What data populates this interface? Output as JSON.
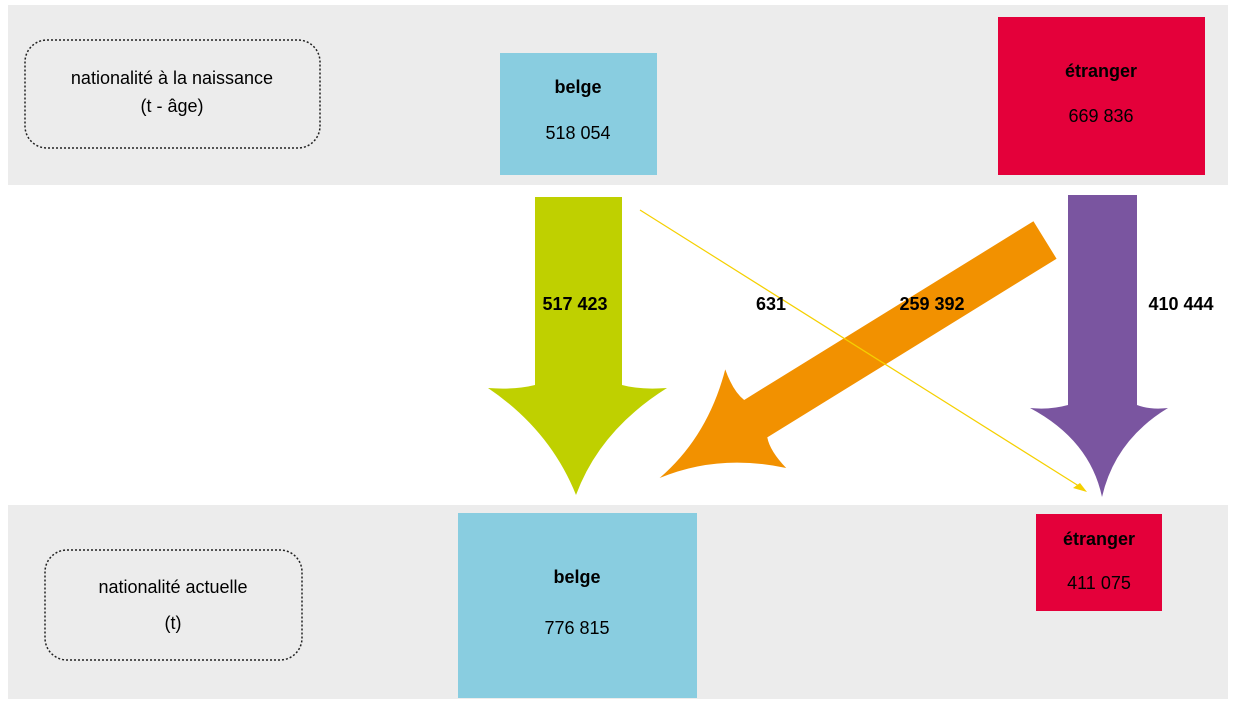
{
  "top": {
    "label": [
      "nationalité à la naissance",
      "(t - âge)"
    ],
    "belge": {
      "title": "belge",
      "value": "518 054"
    },
    "etranger": {
      "title": "étranger",
      "value": "669 836"
    }
  },
  "flows": [
    {
      "value": "517 423"
    },
    {
      "value": "631"
    },
    {
      "value": "259 392"
    },
    {
      "value": "410 444"
    }
  ],
  "bottom": {
    "label": [
      "nationalité actuelle",
      "(t)"
    ],
    "belge": {
      "title": "belge",
      "value": "776 815"
    },
    "etranger": {
      "title": "étranger",
      "value": "411 075"
    }
  }
}
